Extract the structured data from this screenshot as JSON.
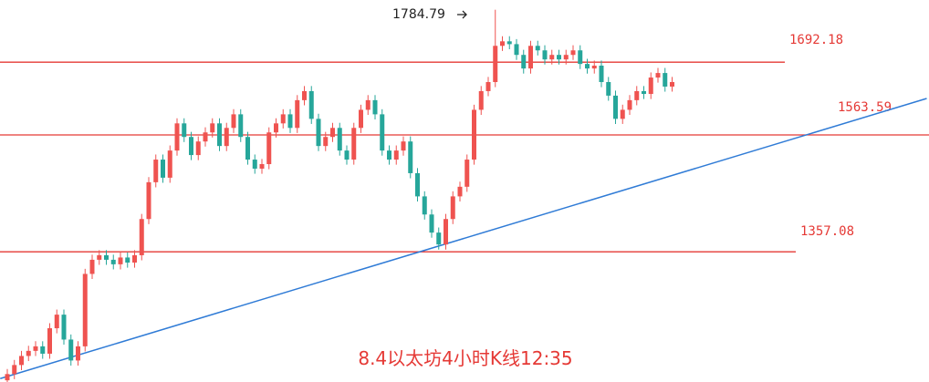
{
  "chart_data": {
    "type": "candlestick",
    "title": "8.4以太坊4小时K线12:35",
    "open": [
      1130,
      1141,
      1157,
      1173,
      1182,
      1190,
      1177,
      1222,
      1246,
      1202,
      1165,
      1190,
      1318,
      1343,
      1351,
      1343,
      1335,
      1347,
      1338,
      1351,
      1415,
      1480,
      1520,
      1488,
      1536,
      1584,
      1560,
      1528,
      1552,
      1568,
      1584,
      1544,
      1576,
      1600,
      1560,
      1520,
      1504,
      1512,
      1568,
      1584,
      1600,
      1576,
      1625,
      1641,
      1592,
      1544,
      1560,
      1576,
      1536,
      1520,
      1576,
      1608,
      1625,
      1600,
      1536,
      1520,
      1536,
      1552,
      1496,
      1455,
      1423,
      1391,
      1370,
      1415,
      1455,
      1472,
      1520,
      1608,
      1641,
      1657,
      1721,
      1729,
      1724,
      1705,
      1681,
      1721,
      1713,
      1697,
      1705,
      1697,
      1705,
      1713,
      1689,
      1681,
      1686,
      1657,
      1633,
      1592,
      1608,
      1625,
      1641,
      1636,
      1665,
      1673,
      1649
    ],
    "high": [
      1150,
      1166,
      1182,
      1191,
      1199,
      1199,
      1231,
      1255,
      1255,
      1211,
      1199,
      1327,
      1352,
      1360,
      1360,
      1352,
      1356,
      1356,
      1360,
      1424,
      1489,
      1529,
      1529,
      1545,
      1593,
      1593,
      1569,
      1561,
      1577,
      1593,
      1593,
      1585,
      1609,
      1609,
      1569,
      1529,
      1521,
      1577,
      1593,
      1609,
      1609,
      1634,
      1650,
      1650,
      1601,
      1569,
      1585,
      1585,
      1545,
      1585,
      1617,
      1634,
      1634,
      1609,
      1545,
      1545,
      1561,
      1561,
      1505,
      1464,
      1432,
      1400,
      1424,
      1464,
      1481,
      1529,
      1617,
      1650,
      1666,
      1784.79,
      1738,
      1738,
      1733,
      1714,
      1730,
      1730,
      1722,
      1714,
      1714,
      1714,
      1722,
      1722,
      1698,
      1695,
      1695,
      1666,
      1642,
      1617,
      1634,
      1650,
      1650,
      1674,
      1682,
      1682,
      1666
    ],
    "low": [
      1121,
      1132,
      1148,
      1164,
      1173,
      1168,
      1168,
      1213,
      1193,
      1156,
      1156,
      1181,
      1309,
      1334,
      1334,
      1326,
      1326,
      1329,
      1329,
      1342,
      1406,
      1471,
      1479,
      1479,
      1527,
      1551,
      1519,
      1519,
      1543,
      1559,
      1535,
      1535,
      1567,
      1551,
      1511,
      1495,
      1495,
      1503,
      1559,
      1575,
      1567,
      1567,
      1616,
      1583,
      1535,
      1535,
      1551,
      1527,
      1511,
      1511,
      1567,
      1599,
      1591,
      1527,
      1511,
      1511,
      1527,
      1487,
      1446,
      1414,
      1382,
      1361,
      1361,
      1406,
      1446,
      1463,
      1511,
      1599,
      1632,
      1648,
      1712,
      1715,
      1696,
      1672,
      1672,
      1704,
      1688,
      1688,
      1688,
      1688,
      1696,
      1680,
      1672,
      1672,
      1648,
      1624,
      1583,
      1583,
      1599,
      1616,
      1627,
      1627,
      1656,
      1640,
      1640
    ],
    "close": [
      1141,
      1157,
      1173,
      1182,
      1190,
      1177,
      1222,
      1246,
      1202,
      1165,
      1190,
      1318,
      1343,
      1351,
      1343,
      1335,
      1347,
      1338,
      1351,
      1415,
      1480,
      1520,
      1488,
      1536,
      1584,
      1560,
      1528,
      1552,
      1568,
      1584,
      1544,
      1576,
      1600,
      1560,
      1520,
      1504,
      1512,
      1568,
      1584,
      1600,
      1576,
      1625,
      1641,
      1592,
      1544,
      1560,
      1576,
      1536,
      1520,
      1576,
      1608,
      1625,
      1600,
      1536,
      1520,
      1536,
      1552,
      1496,
      1455,
      1423,
      1391,
      1370,
      1415,
      1455,
      1472,
      1520,
      1608,
      1641,
      1657,
      1721,
      1729,
      1724,
      1705,
      1681,
      1721,
      1713,
      1697,
      1705,
      1697,
      1705,
      1713,
      1689,
      1681,
      1686,
      1657,
      1633,
      1592,
      1608,
      1625,
      1641,
      1636,
      1665,
      1673,
      1649,
      1657
    ],
    "up_color": "#ef5350",
    "down_color": "#26a69a",
    "ylim": [
      1127,
      1802
    ],
    "levels": [
      1692.18,
      1563.59,
      1357.08
    ],
    "level_color": "#e53935",
    "trendline": {
      "x": [
        -1,
        130
      ],
      "y": [
        1133,
        1628
      ],
      "color": "#2f7bd6"
    },
    "high_annotation": 1784.79
  }
}
